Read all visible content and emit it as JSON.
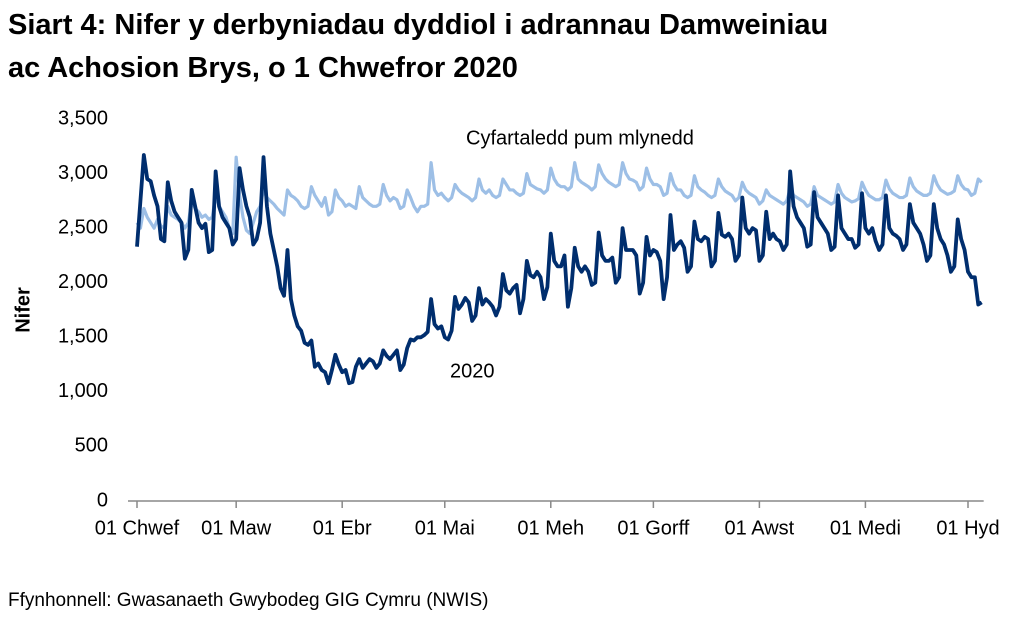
{
  "chart_data": {
    "type": "line",
    "title": "Siart 4: Nifer y derbyniadau dyddiol i adrannau Damweiniau ac Achosion Brys, o 1 Chwefror 2020",
    "y_label": "Nifer",
    "source": "Ffynhonnell: Gwasanaeth Gwybodeg GIG Cymru (NWIS)",
    "categories": [
      "01 Chwef",
      null,
      null,
      null,
      null,
      null,
      null,
      null,
      null,
      null,
      null,
      null,
      null,
      null,
      null,
      null,
      null,
      null,
      null,
      null,
      null,
      null,
      null,
      null,
      null,
      null,
      null,
      null,
      null,
      "01 Maw",
      null,
      null,
      null,
      null,
      null,
      null,
      null,
      null,
      null,
      null,
      null,
      null,
      null,
      null,
      null,
      null,
      null,
      null,
      null,
      null,
      null,
      null,
      null,
      null,
      null,
      null,
      null,
      null,
      null,
      null,
      "01 Ebr",
      null,
      null,
      null,
      null,
      null,
      null,
      null,
      null,
      null,
      null,
      null,
      null,
      null,
      null,
      null,
      null,
      null,
      null,
      null,
      null,
      null,
      null,
      null,
      null,
      null,
      null,
      null,
      null,
      null,
      "01 Mai",
      null,
      null,
      null,
      null,
      null,
      null,
      null,
      null,
      null,
      null,
      null,
      null,
      null,
      null,
      null,
      null,
      null,
      null,
      null,
      null,
      null,
      null,
      null,
      null,
      null,
      null,
      null,
      null,
      null,
      null,
      "01 Meh",
      null,
      null,
      null,
      null,
      null,
      null,
      null,
      null,
      null,
      null,
      null,
      null,
      null,
      null,
      null,
      null,
      null,
      null,
      null,
      null,
      null,
      null,
      null,
      null,
      null,
      null,
      null,
      null,
      null,
      "01 Gorff",
      null,
      null,
      null,
      null,
      null,
      null,
      null,
      null,
      null,
      null,
      null,
      null,
      null,
      null,
      null,
      null,
      null,
      null,
      null,
      null,
      null,
      null,
      null,
      null,
      null,
      null,
      null,
      null,
      null,
      null,
      "01 Awst",
      null,
      null,
      null,
      null,
      null,
      null,
      null,
      null,
      null,
      null,
      null,
      null,
      null,
      null,
      null,
      null,
      null,
      null,
      null,
      null,
      null,
      null,
      null,
      null,
      null,
      null,
      null,
      null,
      null,
      null,
      "01 Medi",
      null,
      null,
      null,
      null,
      null,
      null,
      null,
      null,
      null,
      null,
      null,
      null,
      null,
      null,
      null,
      null,
      null,
      null,
      null,
      null,
      null,
      null,
      null,
      null,
      null,
      null,
      null,
      null,
      null,
      "01 Hyd",
      null,
      null,
      null,
      null
    ],
    "series": [
      {
        "name": "Cyfartaledd pum mlynedd",
        "color": "#9dbfe6",
        "values": [
          2550,
          2500,
          2680,
          2600,
          2550,
          2500,
          2580,
          2520,
          2500,
          2700,
          2620,
          2600,
          2580,
          2550,
          2500,
          2550,
          2750,
          2680,
          2650,
          2600,
          2620,
          2580,
          2600,
          2800,
          2700,
          2650,
          2600,
          2500,
          2450,
          3150,
          2800,
          2600,
          2480,
          2450,
          2550,
          2650,
          2700,
          2850,
          2780,
          2750,
          2720,
          2680,
          2650,
          2620,
          2850,
          2800,
          2780,
          2750,
          2700,
          2680,
          2700,
          2880,
          2800,
          2750,
          2700,
          2780,
          2620,
          2650,
          2850,
          2780,
          2750,
          2700,
          2720,
          2700,
          2680,
          2880,
          2780,
          2750,
          2720,
          2700,
          2700,
          2720,
          2900,
          2800,
          2750,
          2780,
          2760,
          2680,
          2700,
          2850,
          2780,
          2700,
          2650,
          2700,
          2700,
          2720,
          3100,
          2850,
          2800,
          2820,
          2780,
          2750,
          2780,
          2900,
          2850,
          2820,
          2800,
          2780,
          2750,
          2780,
          2950,
          2850,
          2820,
          2850,
          2800,
          2780,
          2800,
          2950,
          2900,
          2850,
          2850,
          2820,
          2800,
          2820,
          3000,
          2900,
          2880,
          2860,
          2850,
          2820,
          2850,
          3050,
          2950,
          2900,
          2880,
          2880,
          2850,
          2880,
          3100,
          2950,
          2920,
          2900,
          2880,
          2850,
          2880,
          3080,
          3000,
          2950,
          2920,
          2900,
          2880,
          2900,
          3100,
          3000,
          2950,
          2940,
          2920,
          2850,
          2880,
          3050,
          2950,
          2900,
          2900,
          2880,
          2800,
          2820,
          3000,
          2900,
          2850,
          2850,
          2800,
          2780,
          2800,
          2980,
          2880,
          2850,
          2830,
          2800,
          2780,
          2800,
          2950,
          2880,
          2840,
          2820,
          2800,
          2750,
          2780,
          2920,
          2850,
          2820,
          2800,
          2780,
          2720,
          2750,
          2850,
          2800,
          2780,
          2760,
          2740,
          2720,
          2750,
          2860,
          2800,
          2780,
          2760,
          2740,
          2700,
          2720,
          2880,
          2800,
          2780,
          2760,
          2740,
          2720,
          2740,
          2900,
          2820,
          2780,
          2760,
          2740,
          2750,
          2770,
          2920,
          2850,
          2800,
          2780,
          2760,
          2760,
          2780,
          2940,
          2860,
          2820,
          2800,
          2780,
          2780,
          2800,
          2960,
          2880,
          2840,
          2820,
          2800,
          2800,
          2820,
          2980,
          2900,
          2850,
          2830,
          2810,
          2820,
          2840,
          2980,
          2900,
          2860,
          2850,
          2800,
          2820,
          2950,
          2920
        ]
      },
      {
        "name": "2020",
        "color": "#002e6e",
        "values": [
          2330,
          2750,
          3170,
          2950,
          2930,
          2800,
          2700,
          2400,
          2380,
          2920,
          2750,
          2650,
          2600,
          2550,
          2220,
          2300,
          2850,
          2700,
          2550,
          2500,
          2540,
          2280,
          2300,
          3020,
          2700,
          2600,
          2550,
          2500,
          2350,
          2400,
          3050,
          2850,
          2700,
          2600,
          2350,
          2400,
          2550,
          3150,
          2700,
          2450,
          2300,
          2150,
          1950,
          1880,
          2300,
          1850,
          1700,
          1600,
          1560,
          1450,
          1430,
          1470,
          1230,
          1260,
          1200,
          1180,
          1080,
          1200,
          1340,
          1250,
          1180,
          1200,
          1080,
          1090,
          1230,
          1300,
          1220,
          1260,
          1300,
          1280,
          1220,
          1260,
          1380,
          1330,
          1300,
          1340,
          1380,
          1200,
          1250,
          1400,
          1480,
          1470,
          1500,
          1500,
          1520,
          1550,
          1850,
          1620,
          1580,
          1600,
          1500,
          1480,
          1560,
          1870,
          1760,
          1800,
          1860,
          1820,
          1650,
          1700,
          1950,
          1800,
          1850,
          1820,
          1780,
          1700,
          1780,
          2080,
          1930,
          1900,
          1950,
          1980,
          1720,
          1850,
          2200,
          2070,
          2050,
          2100,
          2050,
          1850,
          1960,
          2450,
          2200,
          2150,
          2150,
          2250,
          1780,
          1950,
          2320,
          2150,
          2100,
          2150,
          2100,
          1980,
          2000,
          2460,
          2250,
          2200,
          2200,
          2230,
          2000,
          2050,
          2500,
          2300,
          2300,
          2300,
          2250,
          1900,
          2000,
          2420,
          2250,
          2300,
          2280,
          2200,
          1850,
          2050,
          2620,
          2300,
          2350,
          2380,
          2320,
          2100,
          2150,
          2560,
          2400,
          2380,
          2420,
          2400,
          2150,
          2200,
          2640,
          2440,
          2420,
          2450,
          2400,
          2200,
          2250,
          2780,
          2500,
          2450,
          2500,
          2480,
          2200,
          2250,
          2650,
          2400,
          2450,
          2400,
          2380,
          2300,
          2350,
          3020,
          2700,
          2600,
          2550,
          2500,
          2330,
          2350,
          2830,
          2600,
          2550,
          2500,
          2450,
          2300,
          2330,
          2800,
          2500,
          2450,
          2400,
          2400,
          2320,
          2350,
          2820,
          2500,
          2450,
          2500,
          2380,
          2300,
          2350,
          2800,
          2500,
          2450,
          2430,
          2400,
          2300,
          2350,
          2720,
          2550,
          2500,
          2450,
          2350,
          2200,
          2250,
          2720,
          2500,
          2400,
          2350,
          2250,
          2100,
          2150,
          2580,
          2400,
          2300,
          2100,
          2050,
          2050,
          1800,
          1820
        ]
      }
    ],
    "ylim": [
      0,
      3500
    ],
    "yticks": [
      0,
      500,
      {
        "value": 1000,
        "label": "1,000"
      },
      {
        "value": 1500,
        "label": "1,500"
      },
      {
        "value": 2000,
        "label": "2,000"
      },
      {
        "value": 2500,
        "label": "2,500"
      },
      {
        "value": 3000,
        "label": "3,000"
      },
      {
        "value": 3500,
        "label": "3,500"
      }
    ],
    "grid": false
  }
}
